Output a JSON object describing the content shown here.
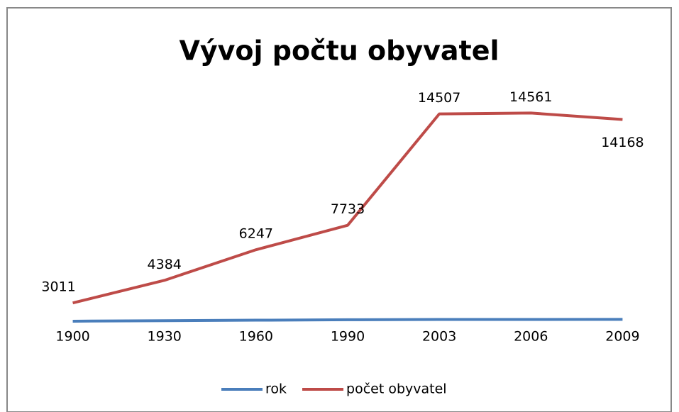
{
  "chart_data": {
    "type": "line",
    "title": "Vývoj počtu obyvatel",
    "categories": [
      "1900",
      "1930",
      "1960",
      "1990",
      "2003",
      "2006",
      "2009"
    ],
    "series": [
      {
        "name": "rok",
        "color": "#4a7ebb",
        "values": [
          1900,
          1930,
          1960,
          1990,
          2003,
          2006,
          2009
        ]
      },
      {
        "name": "počet obyvatel",
        "color": "#be4b48",
        "values": [
          3011,
          4384,
          6247,
          7733,
          14507,
          14561,
          14168
        ],
        "data_labels": true
      }
    ],
    "ylim": [
      0,
      16000
    ],
    "legend": "bottom"
  }
}
